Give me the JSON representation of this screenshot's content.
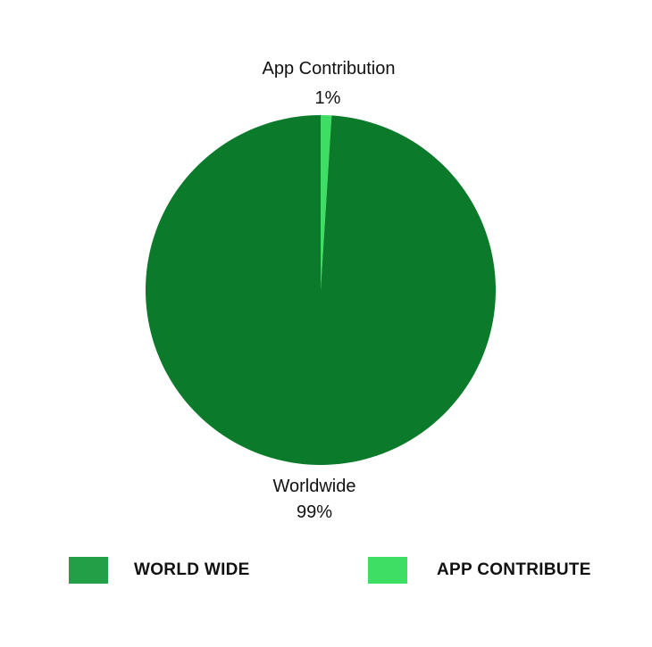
{
  "chart_data": {
    "type": "pie",
    "title": "",
    "slices": [
      {
        "label": "App Contribution",
        "value": 1,
        "value_label": "1%",
        "color": "#3ede64"
      },
      {
        "label": "Worldwide",
        "value": 99,
        "value_label": "99%",
        "color": "#0b7a2a"
      }
    ],
    "legend": {
      "placement": "bottom",
      "items": [
        {
          "label": "WORLD WIDE",
          "color": "#23a047"
        },
        {
          "label": "APP CONTRIBUTE",
          "color": "#3ede64"
        }
      ]
    }
  }
}
